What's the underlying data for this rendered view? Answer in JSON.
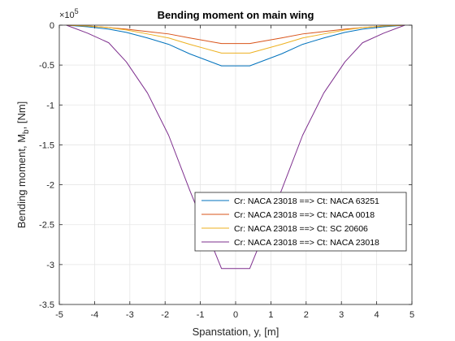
{
  "chart_data": {
    "type": "line",
    "title": "Bending moment on main wing",
    "xlabel": "Spanstation, y, [m]",
    "ylabel_main": "Bending moment, M",
    "ylabel_sub": "b",
    "ylabel_tail": ", [Nm]",
    "y_exponent_base": "×10",
    "y_exponent_power": "5",
    "xlim": [
      -5,
      5
    ],
    "ylim": [
      -3.5,
      0
    ],
    "xticks": [
      -5,
      -4,
      -3,
      -2,
      -1,
      0,
      1,
      2,
      3,
      4,
      5
    ],
    "xtick_labels": [
      "-5",
      "-4",
      "-3",
      "-2",
      "-1",
      "0",
      "1",
      "2",
      "3",
      "4",
      "5"
    ],
    "yticks": [
      0,
      -0.5,
      -1,
      -1.5,
      -2,
      -2.5,
      -3,
      -3.5
    ],
    "ytick_labels": [
      "0",
      "-0.5",
      "-1",
      "-1.5",
      "-2",
      "-2.5",
      "-3",
      "-3.5"
    ],
    "grid": true,
    "legend_position": "lower-right",
    "x": [
      -4.8,
      -4.2,
      -3.6,
      -3.1,
      -2.5,
      -1.9,
      -1.3,
      -0.4,
      0.4,
      1.3,
      1.9,
      2.5,
      3.1,
      3.6,
      4.2,
      4.8
    ],
    "series": [
      {
        "name": "Cr: NACA 23018 ==> Ct: NACA 63251",
        "color": "#0072BD",
        "values": [
          0,
          -0.02,
          -0.05,
          -0.09,
          -0.16,
          -0.24,
          -0.36,
          -0.51,
          -0.51,
          -0.36,
          -0.24,
          -0.16,
          -0.09,
          -0.05,
          -0.02,
          0
        ]
      },
      {
        "name": "Cr: NACA 23018 ==> Ct: NACA 0018",
        "color": "#D95319",
        "values": [
          0,
          -0.01,
          -0.03,
          -0.05,
          -0.08,
          -0.11,
          -0.16,
          -0.23,
          -0.23,
          -0.16,
          -0.11,
          -0.08,
          -0.05,
          -0.03,
          -0.01,
          0
        ]
      },
      {
        "name": "Cr: NACA 23018 ==> Ct: SC 20606",
        "color": "#EDB120",
        "values": [
          0,
          -0.01,
          -0.03,
          -0.06,
          -0.11,
          -0.16,
          -0.24,
          -0.35,
          -0.35,
          -0.24,
          -0.16,
          -0.11,
          -0.06,
          -0.03,
          -0.01,
          0
        ]
      },
      {
        "name": "Cr: NACA 23018 ==> Ct: NACA 23018",
        "color": "#7E2F8E",
        "values": [
          0,
          -0.1,
          -0.22,
          -0.46,
          -0.85,
          -1.38,
          -2.07,
          -3.05,
          -3.05,
          -2.07,
          -1.38,
          -0.85,
          -0.46,
          -0.22,
          -0.1,
          0
        ]
      }
    ]
  }
}
